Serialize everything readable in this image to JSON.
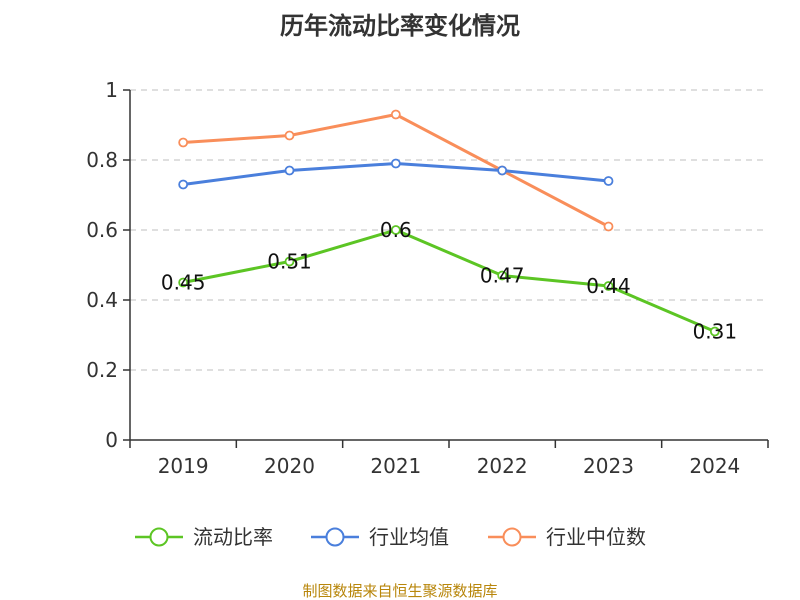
{
  "chart_data": {
    "type": "line",
    "title": "历年流动比率变化情况",
    "categories": [
      "2019",
      "2020",
      "2021",
      "2022",
      "2023",
      "2024"
    ],
    "ylim": [
      0,
      1
    ],
    "yticks": [
      "0",
      "0.2",
      "0.4",
      "0.6",
      "0.8",
      "1"
    ],
    "grid": true,
    "legend_position": "bottom",
    "series": [
      {
        "name": "流动比率",
        "color": "#5cc524",
        "values": [
          0.45,
          0.51,
          0.6,
          0.47,
          0.44,
          0.31
        ],
        "labels": [
          "0.45",
          "0.51",
          "0.6",
          "0.47",
          "0.44",
          "0.31"
        ]
      },
      {
        "name": "行业均值",
        "color": "#4a7fdc",
        "values": [
          0.73,
          0.77,
          0.79,
          0.77,
          0.74,
          null
        ]
      },
      {
        "name": "行业中位数",
        "color": "#f98e5a",
        "values": [
          0.85,
          0.87,
          0.93,
          0.77,
          0.61,
          null
        ]
      }
    ],
    "source": "制图数据来自恒生聚源数据库"
  }
}
